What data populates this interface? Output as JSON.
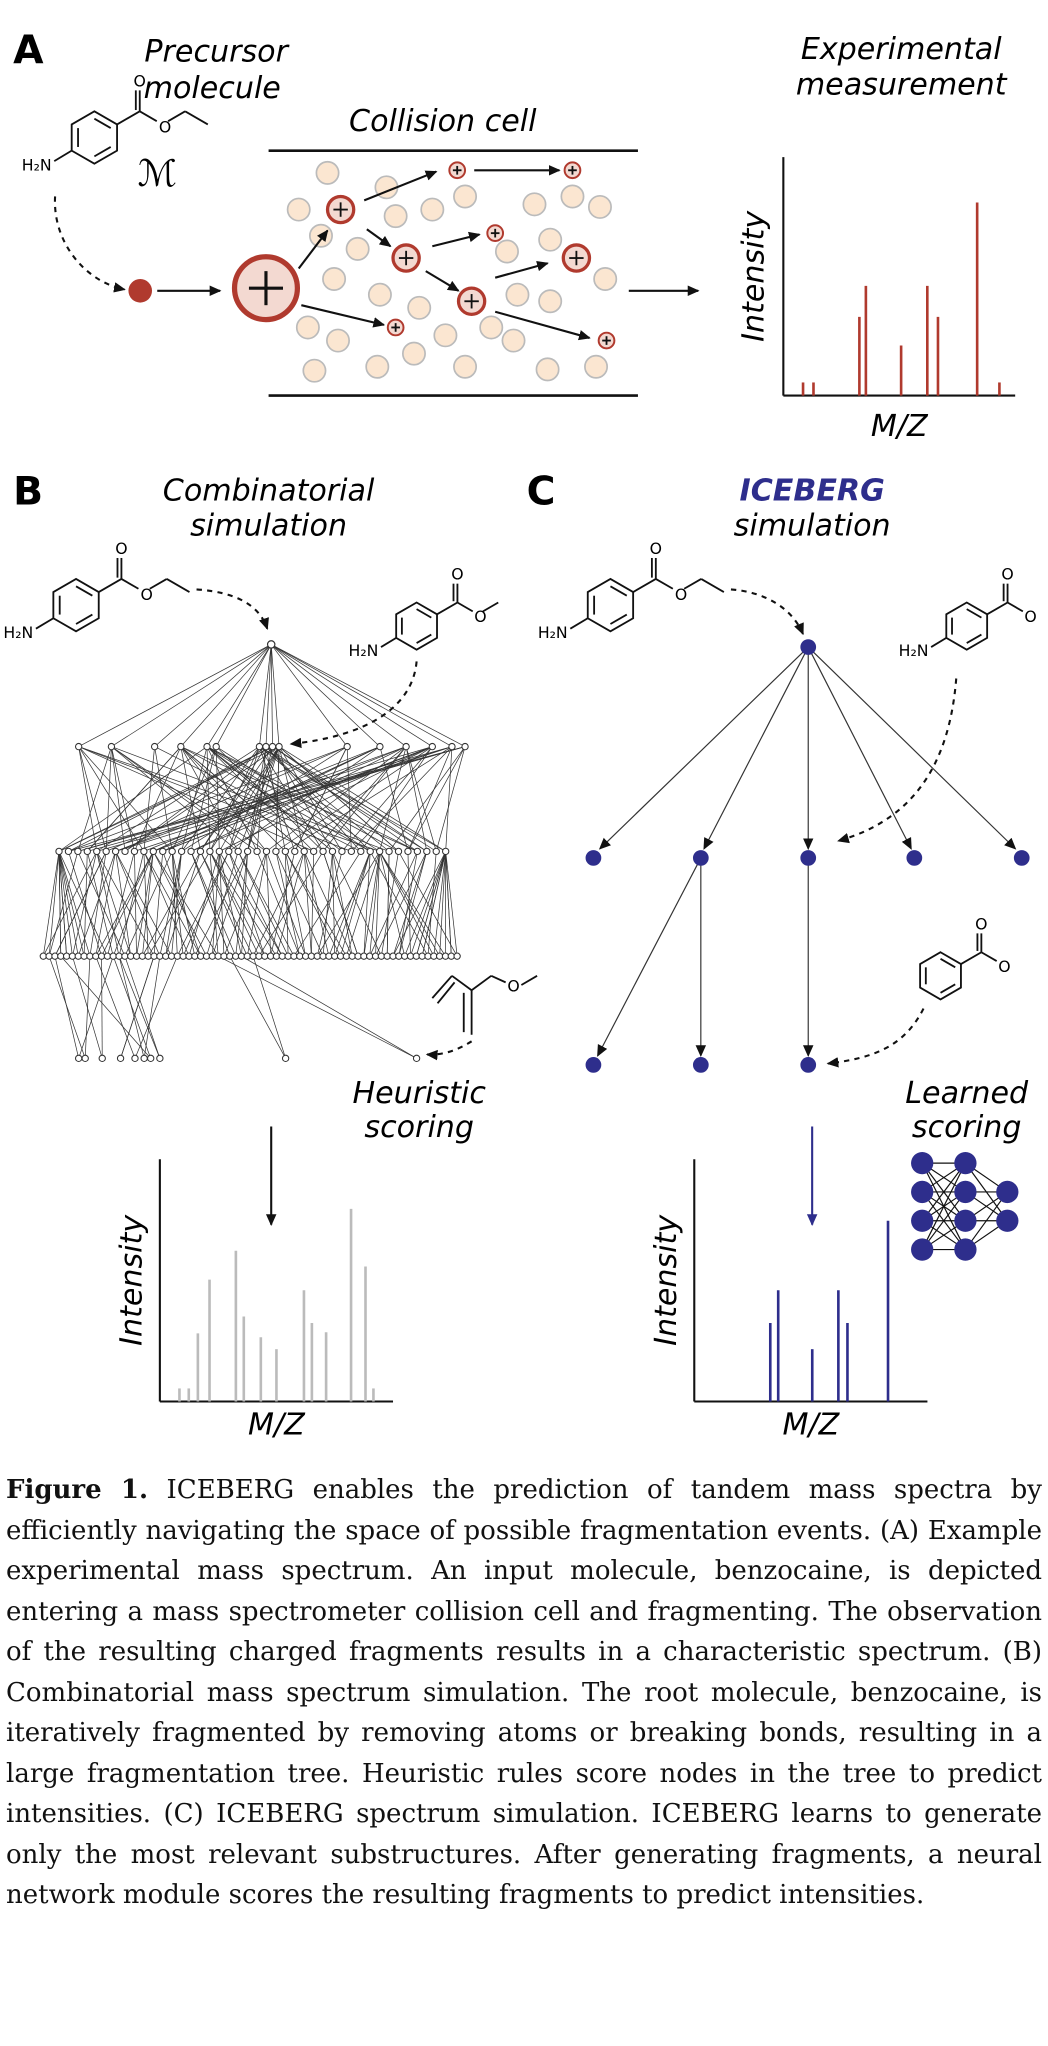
{
  "panel_a": {
    "label": "A",
    "precursor_label": [
      "Precursor",
      "molecule"
    ],
    "molecule_symbol": "ℳ",
    "collision_cell_label": "Collision cell",
    "measurement_label": [
      "Experimental",
      "measurement"
    ],
    "spectrum": {
      "y_label": "Intensity",
      "x_label": "M/Z",
      "peaks_x": [
        8.5,
        13.0,
        32.8,
        35.6,
        50.8,
        62.1,
        66.7,
        83.6,
        93.2
      ],
      "peaks_height": [
        5.5,
        5.5,
        33,
        46,
        21,
        46,
        33,
        81,
        5.5
      ]
    }
  },
  "panel_b": {
    "label": "B",
    "title": [
      "Combinatorial",
      "simulation"
    ],
    "scoring_label": [
      "Heuristic",
      "scoring"
    ],
    "spectrum": {
      "y_label": "Intensity",
      "x_label": "M/Z",
      "peaks_x": [
        8.4,
        12.4,
        16.3,
        21.3,
        32.6,
        36.0,
        43.3,
        50.0,
        61.8,
        65.2,
        71.3,
        82.0,
        88.2,
        91.6
      ],
      "peaks_height": [
        5.4,
        5.4,
        28.1,
        50.3,
        62.2,
        35.1,
        26.5,
        21.6,
        45.9,
        32.4,
        28.6,
        79.5,
        55.7,
        5.4
      ]
    }
  },
  "panel_c": {
    "label": "C",
    "title": [
      "ICEBERG",
      "simulation"
    ],
    "scoring_label": [
      "Learned",
      "scoring"
    ],
    "spectrum": {
      "y_label": "Intensity",
      "x_label": "M/Z",
      "peaks_x": [
        32.6,
        36.0,
        50.6,
        61.8,
        65.7,
        83.1
      ],
      "peaks_height": [
        32.4,
        45.9,
        21.6,
        45.9,
        32.4,
        74.6
      ]
    }
  },
  "molecules": [
    {
      "atoms": [
        "H₂N",
        "O",
        "O"
      ]
    },
    {
      "atoms": [
        "H₂N",
        "O",
        "O"
      ]
    },
    {
      "atoms": [
        "H₂N",
        "O",
        "O"
      ]
    },
    {
      "atoms": [
        "O"
      ]
    },
    {
      "atoms": [
        "H₂N",
        "O",
        "O"
      ]
    },
    {
      "atoms": [
        "H₂N",
        "O",
        "O"
      ]
    },
    {
      "atoms": [
        "O",
        "O"
      ]
    }
  ],
  "caption": {
    "label": "Figure 1.",
    "text": "ICEBERG enables the prediction of tandem mass spectra by efficiently navigating the space of possible fragmentation events. (A) Example experimental mass spectrum. An input molecule, benzocaine, is depicted entering a mass spectrometer collision cell and fragmenting. The observation of the resulting charged fragments results in a characteristic spectrum. (B) Combinatorial mass spectrum simulation. The root molecule, benzocaine, is iteratively fragmented by removing atoms or breaking bonds, resulting in a large fragmentation tree. Heuristic rules score nodes in the tree to predict intensities. (C) ICEBERG spectrum simulation. ICEBERG learns to generate only the most relevant substructures. After generating fragments, a neural network module scores the resulting fragments to predict intensities."
  }
}
